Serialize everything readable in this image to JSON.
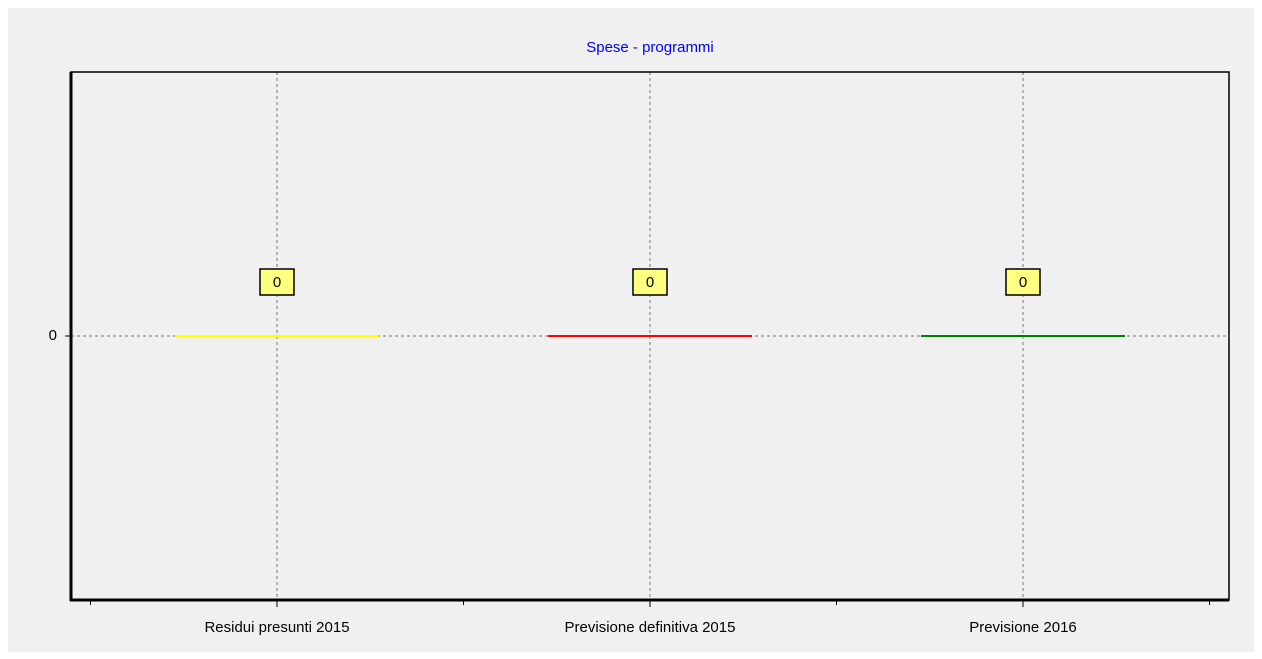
{
  "chart_data": {
    "type": "bar",
    "title": "Spese - programmi",
    "categories": [
      "Residui presunti 2015",
      "Previsione definitiva 2015",
      "Previsione 2016"
    ],
    "values": [
      0,
      0,
      0
    ],
    "colors": [
      "#ffff00",
      "#ff0000",
      "#008000"
    ],
    "ylim": [
      -1,
      1
    ],
    "yticks": [
      0
    ],
    "grid": true
  }
}
